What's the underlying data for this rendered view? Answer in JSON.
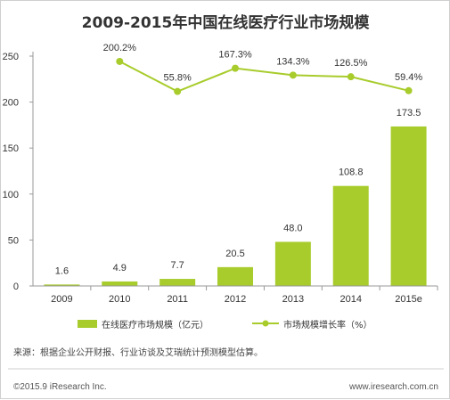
{
  "chart_data": {
    "type": "bar",
    "title": "2009-2015年中国在线医疗行业市场规模",
    "categories": [
      "2009",
      "2010",
      "2011",
      "2012",
      "2013",
      "2014",
      "2015e"
    ],
    "series": [
      {
        "name": "在线医疗市场规模（亿元）",
        "type": "bar",
        "axis": "left",
        "values": [
          1.6,
          4.9,
          7.7,
          20.5,
          48.0,
          108.8,
          173.5
        ],
        "labels": [
          "1.6",
          "4.9",
          "7.7",
          "20.5",
          "48.0",
          "108.8",
          "173.5"
        ],
        "color": "#a8cc2c"
      },
      {
        "name": "市场规模增长率（%）",
        "type": "line",
        "values": [
          null,
          200.2,
          55.8,
          167.3,
          134.3,
          126.5,
          59.4
        ],
        "labels": [
          "",
          "200.2%",
          "55.8%",
          "167.3%",
          "134.3%",
          "126.5%",
          "59.4%"
        ],
        "color": "#a8cc2c"
      }
    ],
    "yticks": [
      "0",
      "50",
      "100",
      "150",
      "200",
      "250"
    ],
    "ylim": [
      0,
      250
    ],
    "grid": false,
    "legend": "bottom"
  },
  "source_note": "来源：根据企业公开财报、行业访谈及艾瑞统计预测模型估算。",
  "footer": {
    "copyright": "©2015.9 iResearch Inc.",
    "website": "www.iresearch.com.cn"
  }
}
